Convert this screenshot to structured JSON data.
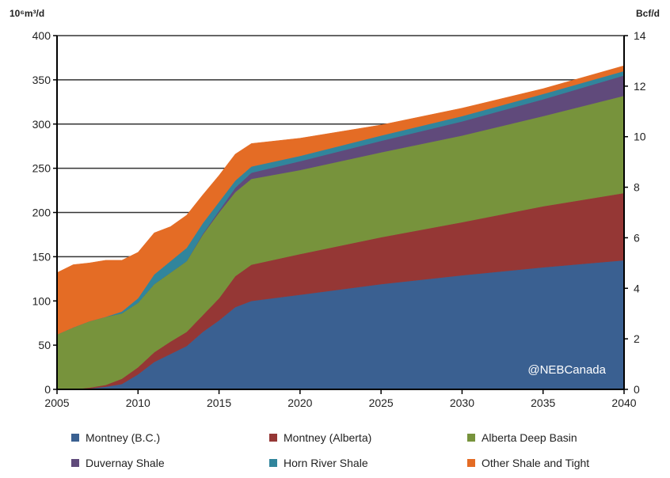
{
  "chart_data": {
    "type": "area",
    "stacked": true,
    "ylabel_left": "10⁶m³/d",
    "ylabel_right": "Bcf/d",
    "ylim": [
      0,
      400
    ],
    "ylim_right": [
      0,
      14
    ],
    "xlim": [
      2005,
      2040
    ],
    "x_ticks": [
      "2005",
      "2010",
      "2015",
      "2020",
      "2025",
      "2030",
      "2035",
      "2040"
    ],
    "y_ticks": [
      "0",
      "50",
      "100",
      "150",
      "200",
      "250",
      "300",
      "350",
      "400"
    ],
    "y_ticks_right": [
      "0",
      "2",
      "4",
      "6",
      "8",
      "10",
      "12",
      "14"
    ],
    "grid": "horizontal",
    "legend_position": "bottom",
    "watermark": "@NEBCanada",
    "x": [
      2005,
      2006,
      2007,
      2008,
      2009,
      2010,
      2011,
      2012,
      2013,
      2014,
      2015,
      2016,
      2017,
      2020,
      2025,
      2030,
      2035,
      2040
    ],
    "series": [
      {
        "name": "Montney (B.C.)",
        "color": "#3a6091",
        "values": [
          0,
          0,
          1,
          3,
          6,
          17,
          31,
          40,
          49,
          65,
          78,
          93,
          100,
          107,
          119,
          129,
          138,
          146
        ]
      },
      {
        "name": "Montney (Alberta)",
        "color": "#953735",
        "values": [
          0,
          0,
          1,
          2,
          6,
          8,
          11,
          14,
          16,
          19,
          25,
          35,
          41,
          46,
          53,
          60,
          69,
          76
        ]
      },
      {
        "name": "Alberta Deep Basin",
        "color": "#77933c",
        "values": [
          62,
          70,
          75,
          77,
          74,
          73,
          77,
          78,
          80,
          91,
          97,
          95,
          97,
          95,
          96,
          98,
          102,
          110
        ]
      },
      {
        "name": "Duvernay Shale",
        "color": "#604a7b",
        "values": [
          0,
          0,
          0,
          0,
          0,
          0,
          0,
          0,
          0,
          1,
          2,
          5,
          7,
          10,
          13,
          16,
          19,
          23
        ]
      },
      {
        "name": "Horn River Shale",
        "color": "#31859c",
        "values": [
          0,
          0,
          0,
          0,
          2,
          5,
          11,
          13,
          15,
          12,
          10,
          8,
          7,
          6,
          6,
          6,
          6,
          5
        ]
      },
      {
        "name": "Other Shale and Tight",
        "color": "#e46c25",
        "values": [
          70,
          71,
          66,
          64,
          58,
          52,
          47,
          39,
          37,
          32,
          30,
          30,
          26,
          20,
          12,
          9,
          6,
          6
        ]
      }
    ]
  }
}
